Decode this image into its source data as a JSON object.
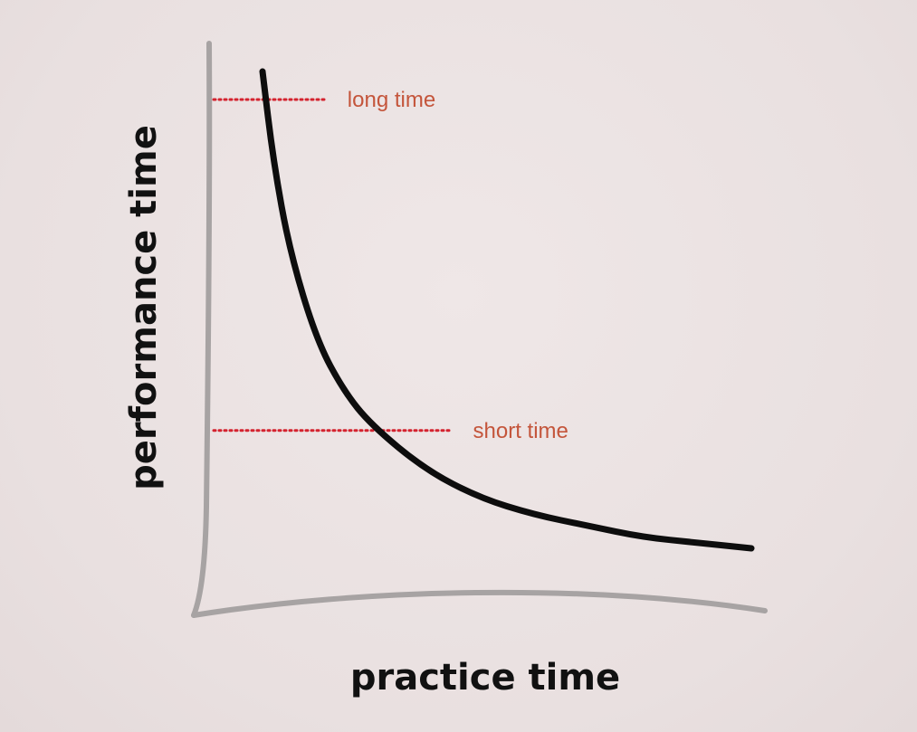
{
  "chart_data": {
    "type": "line",
    "xlabel": "practice time",
    "ylabel": "performance time",
    "grid": false,
    "legend": "none",
    "annotations": [
      {
        "text": "long time",
        "level": 0.9
      },
      {
        "text": "short time",
        "level": 0.31
      }
    ],
    "curve": {
      "x": [
        0.1,
        0.12,
        0.15,
        0.2,
        0.25,
        0.3,
        0.4,
        0.5,
        0.6,
        0.7,
        0.8,
        0.9,
        1.0
      ],
      "y": [
        0.95,
        0.79,
        0.63,
        0.47,
        0.38,
        0.32,
        0.24,
        0.19,
        0.16,
        0.14,
        0.12,
        0.11,
        0.1
      ]
    },
    "colors": {
      "axis": "#a7a3a3",
      "curve": "#0d0d0d",
      "guide_line": "#d4232f",
      "annotation_text": "#c4553b",
      "axis_label": "#111111"
    }
  }
}
